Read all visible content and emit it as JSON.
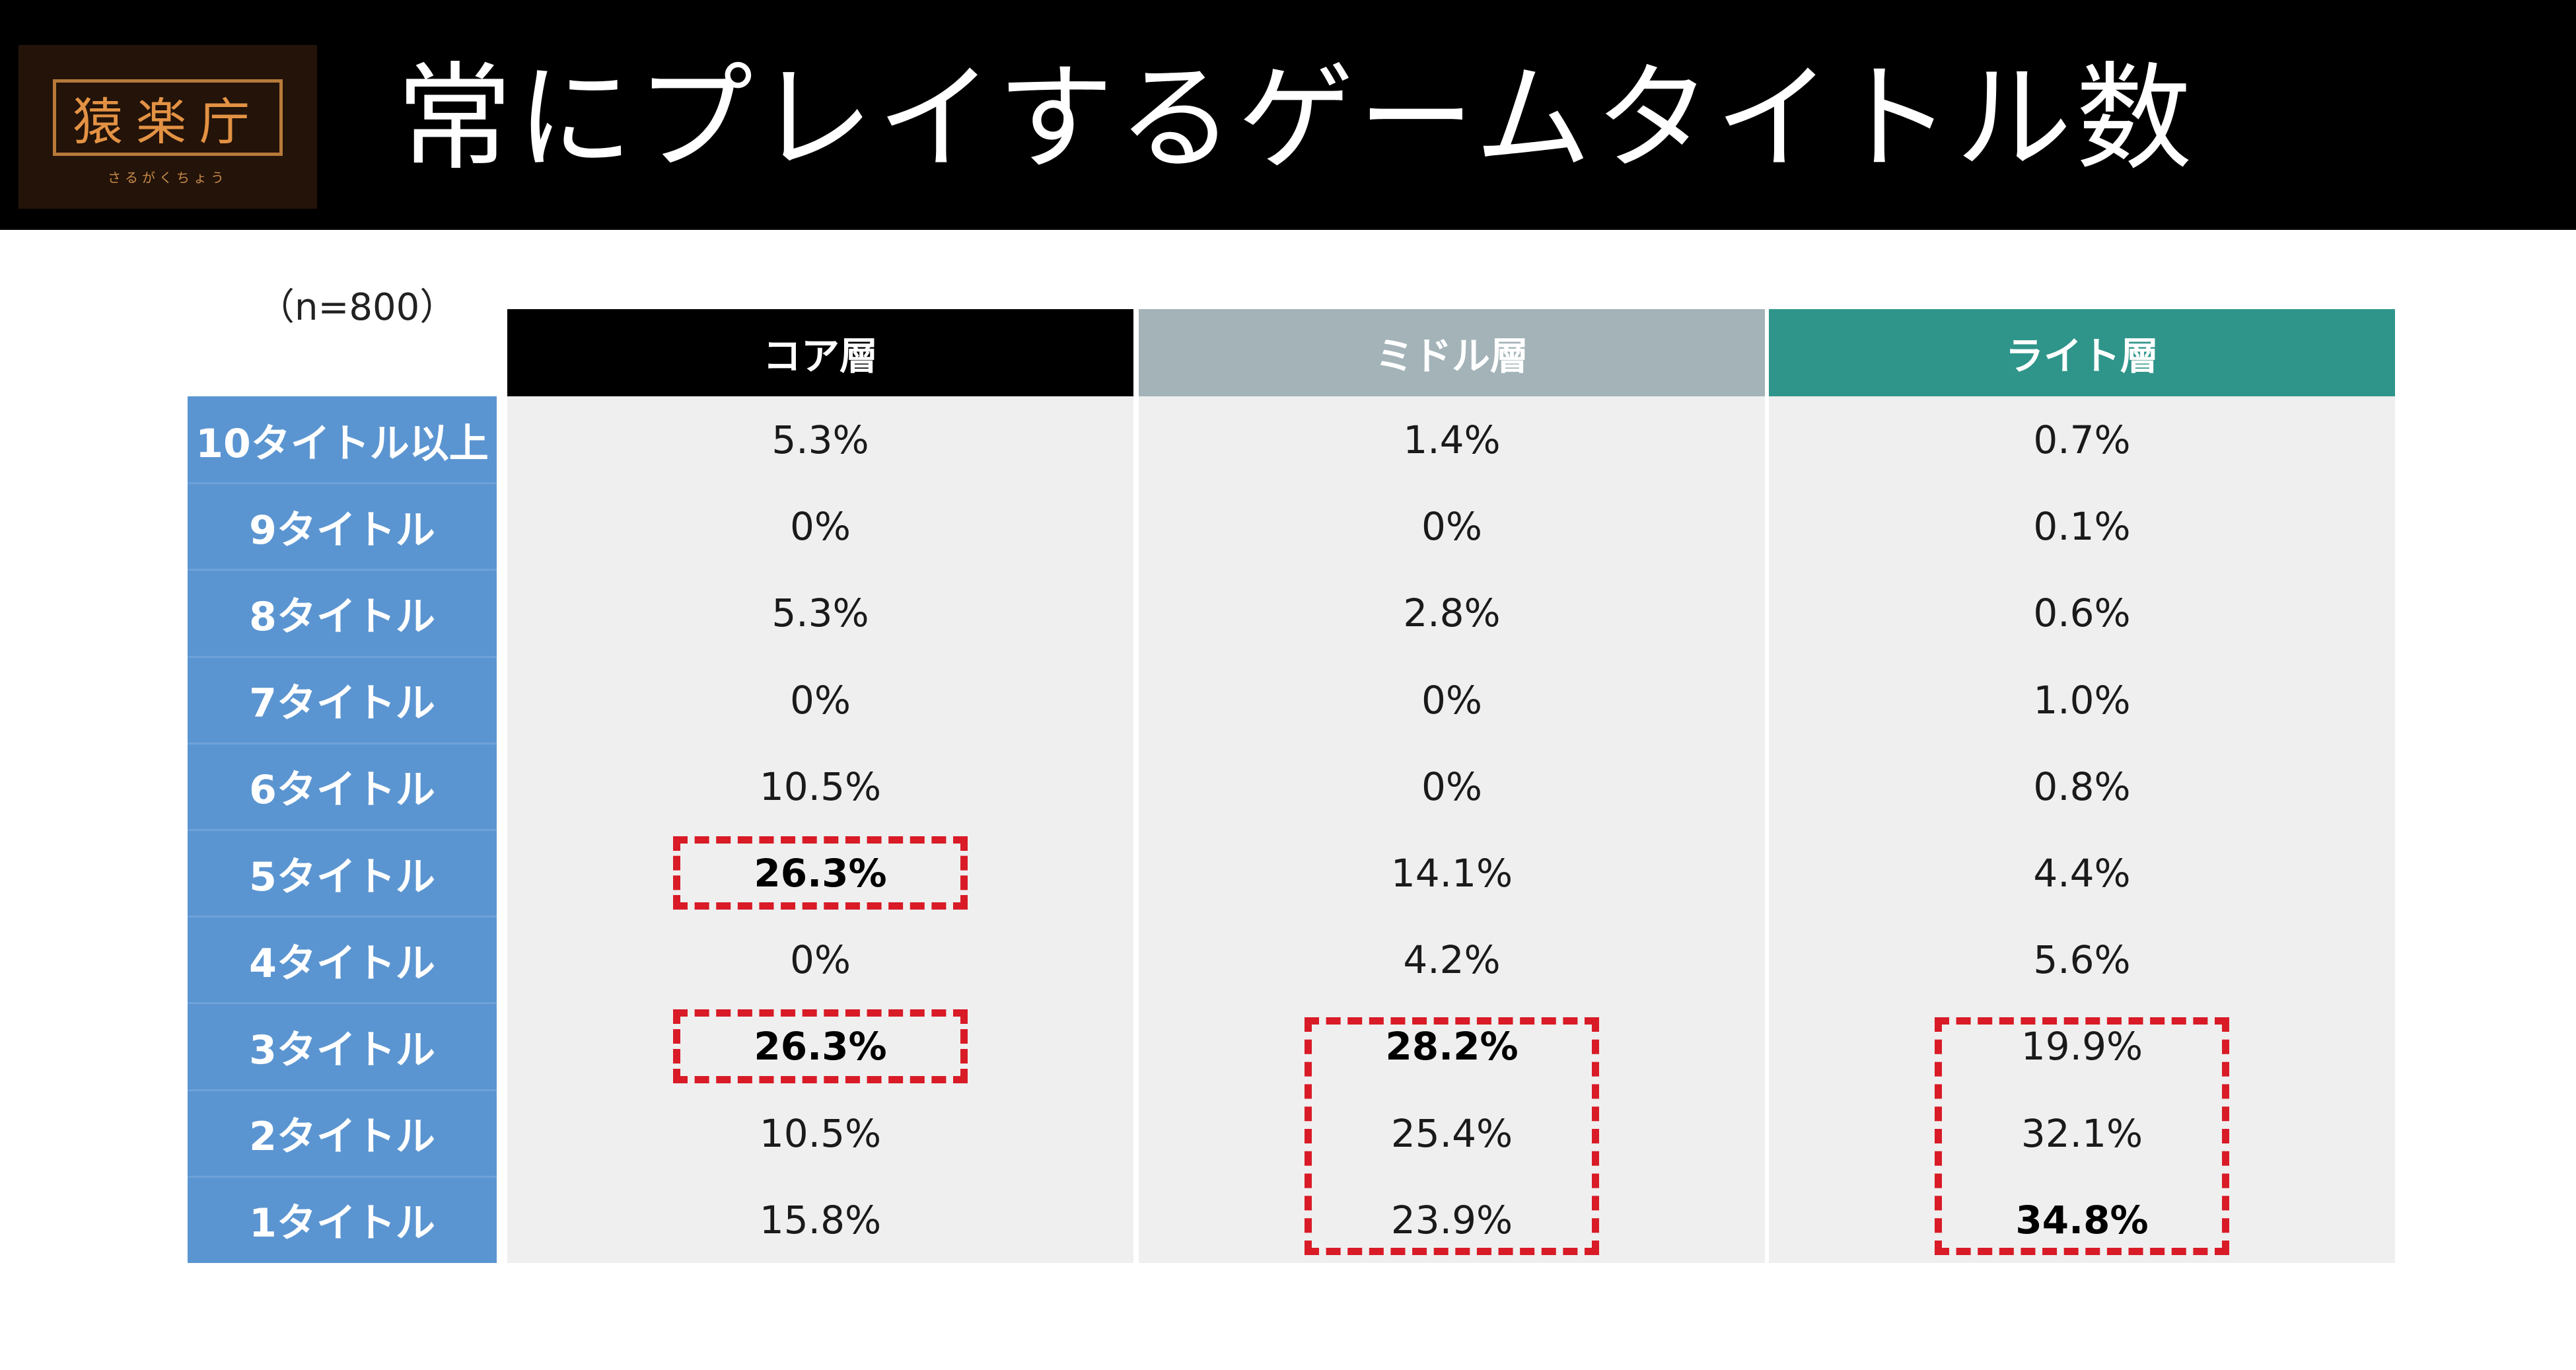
{
  "logo": {
    "mark": "猿楽庁",
    "reading": "さるがくちょう"
  },
  "title": "常にプレイするゲームタイトル数",
  "sample_note": "（n=800）",
  "colors": {
    "core": "#000000",
    "middle": "#a3b3b8",
    "light": "#2f958a",
    "row_label_bg": "#5b95d1",
    "highlight": "#d81b26",
    "cell_bg": "#efefef"
  },
  "chart_data": {
    "type": "table",
    "columns": [
      "コア層",
      "ミドル層",
      "ライト層"
    ],
    "rows": [
      {
        "label": "10タイトル以上",
        "values": [
          "5.3%",
          "1.4%",
          "0.7%"
        ]
      },
      {
        "label": "9タイトル",
        "values": [
          "0%",
          "0%",
          "0.1%"
        ]
      },
      {
        "label": "8タイトル",
        "values": [
          "5.3%",
          "2.8%",
          "0.6%"
        ]
      },
      {
        "label": "7タイトル",
        "values": [
          "0%",
          "0%",
          "1.0%"
        ]
      },
      {
        "label": "6タイトル",
        "values": [
          "10.5%",
          "0%",
          "0.8%"
        ]
      },
      {
        "label": "5タイトル",
        "values": [
          "26.3%",
          "14.1%",
          "4.4%"
        ]
      },
      {
        "label": "4タイトル",
        "values": [
          "0%",
          "4.2%",
          "5.6%"
        ]
      },
      {
        "label": "3タイトル",
        "values": [
          "26.3%",
          "28.2%",
          "19.9%"
        ]
      },
      {
        "label": "2タイトル",
        "values": [
          "10.5%",
          "25.4%",
          "32.1%"
        ]
      },
      {
        "label": "1タイトル",
        "values": [
          "15.8%",
          "23.9%",
          "34.8%"
        ]
      }
    ],
    "bold_cells": [
      [
        5,
        0
      ],
      [
        7,
        0
      ],
      [
        7,
        1
      ],
      [
        9,
        2
      ]
    ],
    "highlight_boxes": [
      {
        "column": 0,
        "rows": [
          5
        ]
      },
      {
        "column": 0,
        "rows": [
          7
        ]
      },
      {
        "column": 1,
        "rows": [
          7,
          8,
          9
        ]
      },
      {
        "column": 2,
        "rows": [
          7,
          8,
          9
        ]
      }
    ]
  }
}
